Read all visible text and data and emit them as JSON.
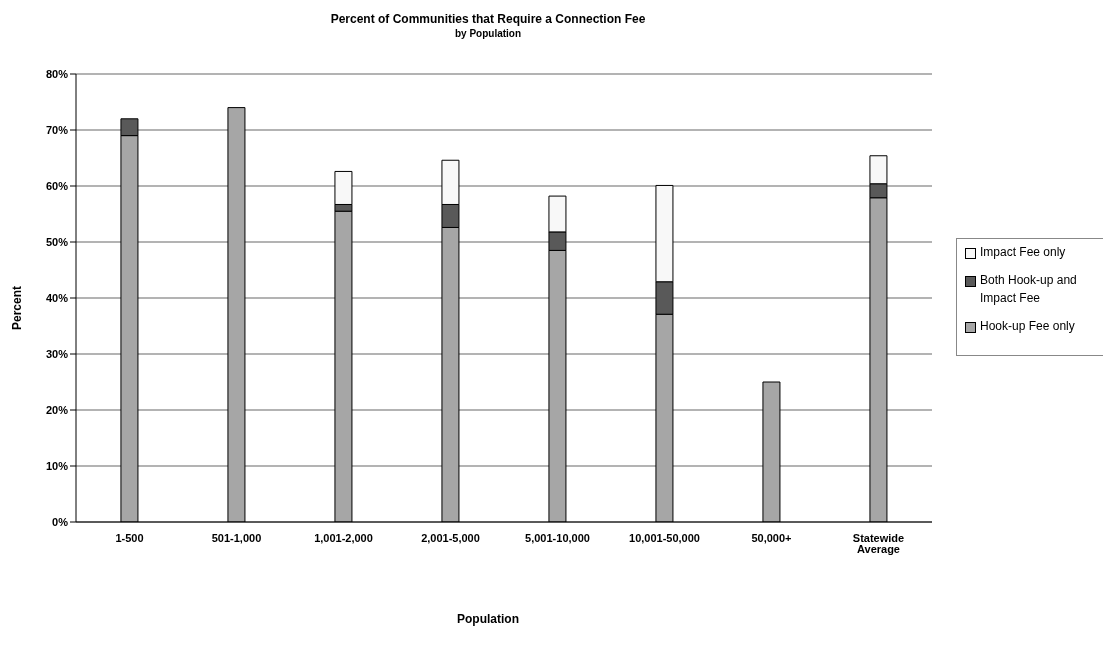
{
  "chart_data": {
    "type": "bar",
    "title": "Percent of Communities that Require a Connection Fee",
    "subtitle": "by Population",
    "xlabel": "Population",
    "ylabel": "Percent",
    "categories": [
      "1-500",
      "501-1,000",
      "1,001-2,000",
      "2,001-5,000",
      "5,001-10,000",
      "10,001-50,000",
      "50,000+",
      "Statewide Average"
    ],
    "stacked": true,
    "series": [
      {
        "name": "Hook-up Fee only",
        "color": "#a6a6a6",
        "values": [
          69,
          74,
          55.5,
          52.6,
          48.5,
          37.1,
          25,
          57.9
        ]
      },
      {
        "name": "Both Hook-up and Impact Fee",
        "color": "#595959",
        "values": [
          3,
          null,
          1.2,
          4.1,
          3.3,
          5.8,
          null,
          2.5
        ]
      },
      {
        "name": "Impact Fee only",
        "color": "#f8f8f8",
        "values": [
          null,
          null,
          5.9,
          7.9,
          6.4,
          17.2,
          null,
          5
        ]
      }
    ],
    "ylim": [
      0,
      80
    ],
    "yticks": [
      {
        "value": 0,
        "label": "0%"
      },
      {
        "value": 10,
        "label": "10%"
      },
      {
        "value": 20,
        "label": "20%"
      },
      {
        "value": 30,
        "label": "30%"
      },
      {
        "value": 40,
        "label": "40%"
      },
      {
        "value": 50,
        "label": "50%"
      },
      {
        "value": 60,
        "label": "60%"
      },
      {
        "value": 70,
        "label": "70%"
      },
      {
        "value": 80,
        "label": "80%"
      }
    ],
    "grid": "y",
    "legend": "right"
  }
}
